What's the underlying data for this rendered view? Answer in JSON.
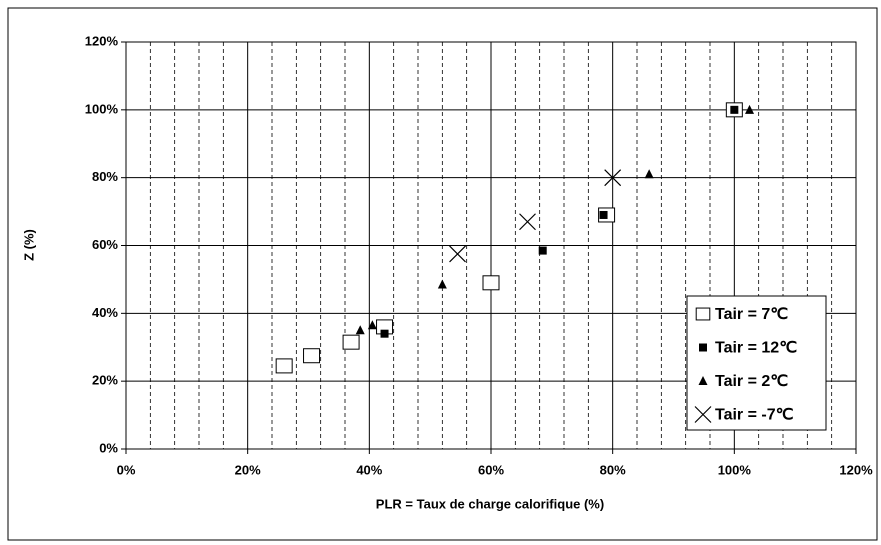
{
  "chart_data": {
    "type": "scatter",
    "xlabel": "PLR = Taux de charge calorifique (%)",
    "ylabel": "Z (%)",
    "xlim": [
      0,
      120
    ],
    "ylim": [
      0,
      120
    ],
    "xticks": [
      {
        "value": 0,
        "label": "0%"
      },
      {
        "value": 20,
        "label": "20%"
      },
      {
        "value": 40,
        "label": "40%"
      },
      {
        "value": 60,
        "label": "60%"
      },
      {
        "value": 80,
        "label": "80%"
      },
      {
        "value": 100,
        "label": "100%"
      },
      {
        "value": 120,
        "label": "120%"
      }
    ],
    "yticks": [
      {
        "value": 0,
        "label": "0%"
      },
      {
        "value": 20,
        "label": "20%"
      },
      {
        "value": 40,
        "label": "40%"
      },
      {
        "value": 60,
        "label": "60%"
      },
      {
        "value": 80,
        "label": "80%"
      },
      {
        "value": 100,
        "label": "100%"
      },
      {
        "value": 120,
        "label": "120%"
      }
    ],
    "xminorticks": [
      4,
      8,
      12,
      16,
      24,
      28,
      32,
      36,
      44,
      48,
      52,
      56,
      64,
      68,
      72,
      76,
      84,
      88,
      92,
      96,
      104,
      108,
      112,
      116
    ],
    "grid": true,
    "legend": "lower right",
    "series": [
      {
        "name": "Tair = 7℃",
        "color": "#000000",
        "marker": "square-open",
        "x": [
          26,
          30.5,
          37,
          42.5,
          60,
          79,
          100
        ],
        "values": [
          24.5,
          27.5,
          31.5,
          36,
          49,
          69,
          100
        ]
      },
      {
        "name": "Tair = 12℃",
        "color": "#000000",
        "marker": "square",
        "x": [
          42.5,
          68.5,
          78.5,
          100
        ],
        "values": [
          34,
          58.5,
          69,
          100
        ]
      },
      {
        "name": "Tair = 2℃",
        "color": "#000000",
        "marker": "triangle",
        "x": [
          38.5,
          40.5,
          52,
          86,
          102.5
        ],
        "values": [
          35,
          36.5,
          48.5,
          81,
          100
        ]
      },
      {
        "name": "Tair = -7℃",
        "color": "#000000",
        "marker": "cross",
        "x": [
          54.5,
          66,
          80
        ],
        "values": [
          57.5,
          67,
          80
        ]
      }
    ]
  }
}
